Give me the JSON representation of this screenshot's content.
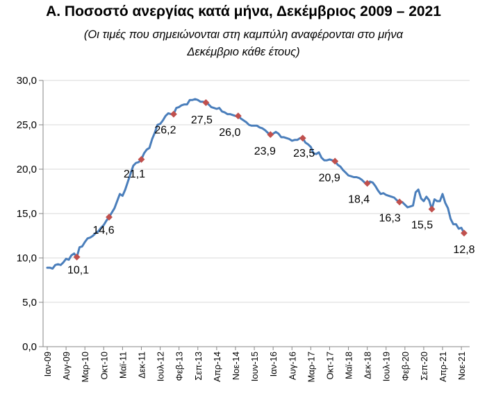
{
  "chart_data": {
    "type": "line",
    "title": "Α. Ποσοστό ανεργίας κατά μήνα, Δεκέμβριος 2009 – 2021",
    "subtitle_lines": [
      "(Οι τιμές που σημειώνονται στη καμπύλη αναφέρονται στο μήνα",
      "Δεκέμβριο κάθε έτους)"
    ],
    "xlabel": "",
    "ylabel": "",
    "ylim": [
      0,
      30
    ],
    "y_ticks": [
      "0,0",
      "5,0",
      "10,0",
      "15,0",
      "20,0",
      "25,0",
      "30,0"
    ],
    "x_tick_labels": [
      "Ιαν-09",
      "Αυγ-09",
      "Μαρ-10",
      "Οκτ-10",
      "Μαϊ-11",
      "Δεκ-11",
      "Ιουλ-12",
      "Φεβ-13",
      "Σεπ-13",
      "Απρ-14",
      "Νοε-14",
      "Ιουν-15",
      "Ιαν-16",
      "Αυγ-16",
      "Μαρ-17",
      "Οκτ-17",
      "Μαϊ-18",
      "Δεκ-18",
      "Ιουλ-19",
      "Φεβ-20",
      "Σεπ-20",
      "Απρ-21",
      "Νοε-21"
    ],
    "grid": "horizontal",
    "legend": "none",
    "line_color": "#4a7ebb",
    "marker_color": "#c0504d",
    "series": [
      {
        "start": "2009-01",
        "values": [
          8.9,
          8.9,
          8.8,
          9.2,
          9.3,
          9.2,
          9.5,
          9.9,
          9.8,
          10.3,
          10.5,
          10.1,
          11.2,
          11.3,
          11.8,
          12.2,
          12.3,
          12.5,
          12.8,
          13.0,
          13.4,
          13.7,
          14.2,
          14.6,
          15.1,
          15.6,
          16.4,
          17.2,
          17.0,
          17.7,
          18.6,
          19.5,
          20.4,
          20.7,
          20.8,
          21.1,
          21.8,
          22.2,
          22.4,
          23.4,
          24.1,
          25.0,
          25.1,
          25.5,
          26.0,
          26.3,
          26.2,
          26.2,
          26.9,
          27.0,
          27.2,
          27.3,
          27.3,
          27.8,
          27.8,
          27.9,
          27.8,
          27.6,
          27.6,
          27.5,
          27.3,
          27.0,
          26.9,
          26.8,
          26.9,
          26.5,
          26.4,
          26.2,
          26.2,
          26.1,
          26.0,
          26.0,
          25.7,
          25.5,
          25.3,
          25.0,
          24.9,
          24.9,
          24.9,
          24.7,
          24.6,
          24.4,
          24.1,
          23.9,
          24.0,
          24.2,
          24.0,
          23.6,
          23.6,
          23.5,
          23.4,
          23.2,
          23.3,
          23.3,
          23.5,
          23.5,
          23.0,
          22.8,
          22.5,
          21.8,
          21.7,
          21.9,
          21.3,
          21.0,
          21.0,
          21.1,
          21.0,
          20.9,
          20.5,
          20.3,
          19.9,
          19.6,
          19.3,
          19.2,
          19.1,
          19.1,
          19.0,
          18.8,
          18.5,
          18.4,
          18.6,
          18.5,
          18.1,
          17.6,
          17.2,
          17.3,
          17.1,
          17.0,
          16.9,
          16.8,
          16.5,
          16.3,
          16.3,
          16.0,
          15.7,
          15.8,
          15.9,
          17.4,
          17.7,
          16.7,
          16.4,
          16.9,
          16.5,
          15.5,
          16.6,
          16.4,
          16.4,
          17.2,
          16.2,
          15.6,
          14.4,
          13.8,
          13.8,
          13.3,
          13.4,
          12.8
        ]
      }
    ],
    "december_labels": [
      {
        "month": "2009-12",
        "value": 10.1,
        "label": "10,1"
      },
      {
        "month": "2010-12",
        "value": 14.6,
        "label": "14,6"
      },
      {
        "month": "2011-12",
        "value": 21.1,
        "label": "21,1"
      },
      {
        "month": "2012-12",
        "value": 26.2,
        "label": "26,2"
      },
      {
        "month": "2013-12",
        "value": 27.5,
        "label": "27,5"
      },
      {
        "month": "2014-12",
        "value": 26.0,
        "label": "26,0"
      },
      {
        "month": "2015-12",
        "value": 23.9,
        "label": "23,9"
      },
      {
        "month": "2016-12",
        "value": 23.5,
        "label": "23,5"
      },
      {
        "month": "2017-12",
        "value": 20.9,
        "label": "20,9"
      },
      {
        "month": "2018-12",
        "value": 18.4,
        "label": "18,4"
      },
      {
        "month": "2019-12",
        "value": 16.3,
        "label": "16,3"
      },
      {
        "month": "2020-12",
        "value": 15.5,
        "label": "15,5"
      },
      {
        "month": "2021-12",
        "value": 12.8,
        "label": "12,8"
      }
    ]
  }
}
